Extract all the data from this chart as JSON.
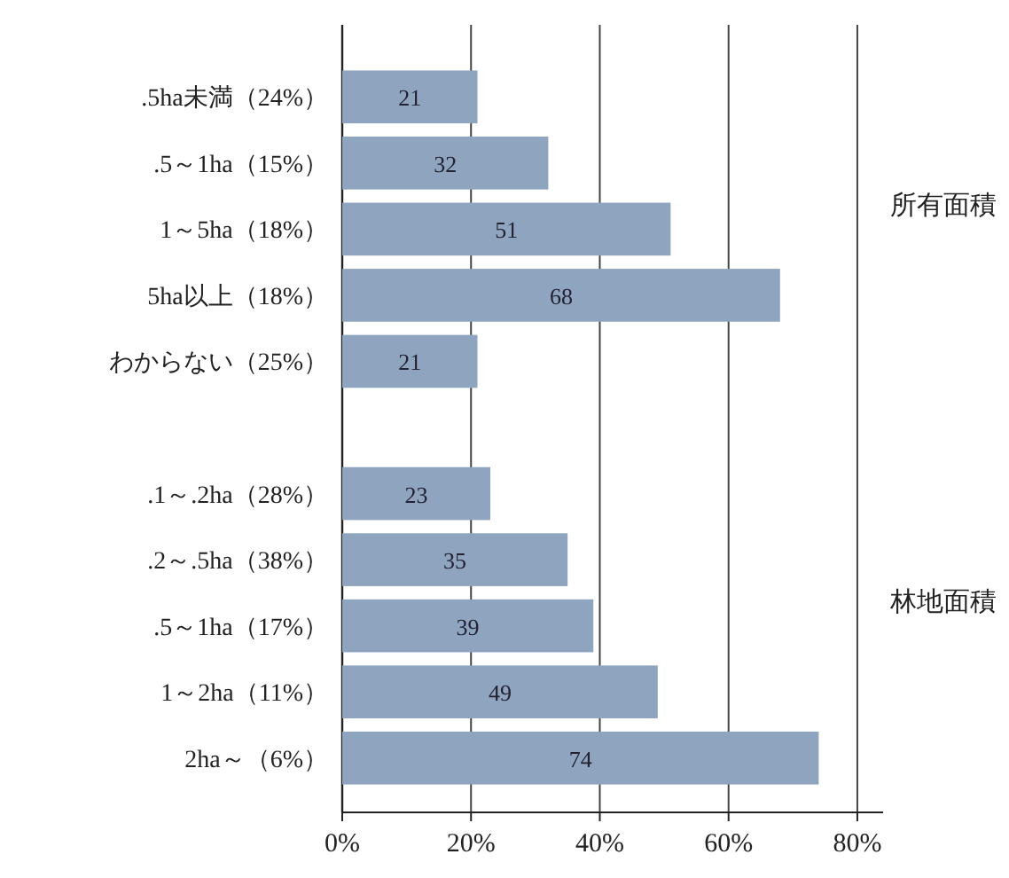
{
  "chart_data": {
    "type": "bar",
    "orientation": "horizontal",
    "categories": [
      ".5ha未満（24%）",
      ".5～1ha（15%）",
      "1～5ha（18%）",
      "5ha以上（18%）",
      "わからない（25%）",
      null,
      ".1～.2ha（28%）",
      ".2～.5ha（38%）",
      ".5～1ha（17%）",
      "1～2ha（11%）",
      "2ha～（6%）"
    ],
    "values": [
      21,
      32,
      51,
      68,
      21,
      null,
      23,
      35,
      39,
      49,
      74
    ],
    "color": "#8fa5bf",
    "data_labels": true,
    "xlim": [
      0,
      84
    ],
    "xticks": [
      {
        "value": 0,
        "label": "0%"
      },
      {
        "value": 20,
        "label": "20%"
      },
      {
        "value": 40,
        "label": "40%"
      },
      {
        "value": 60,
        "label": "60%"
      },
      {
        "value": 80,
        "label": "80%"
      }
    ],
    "grid": "x",
    "annotations": [
      "所有面積",
      "林地面積"
    ]
  }
}
